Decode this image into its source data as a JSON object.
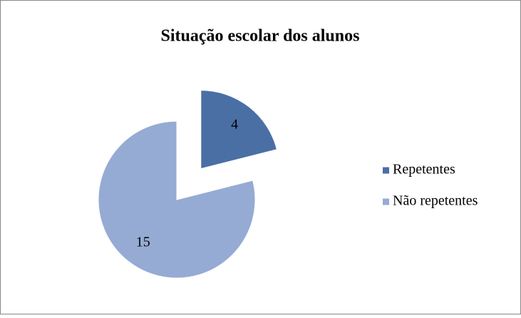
{
  "chart_data": {
    "type": "pie",
    "title": "Situação escolar dos alunos",
    "categories": [
      "Repetentes",
      "Não repetentes"
    ],
    "values": [
      4,
      15
    ],
    "colors": [
      "#4a6fa5",
      "#95abd3"
    ],
    "explode": [
      true,
      false
    ],
    "legend": "right"
  }
}
